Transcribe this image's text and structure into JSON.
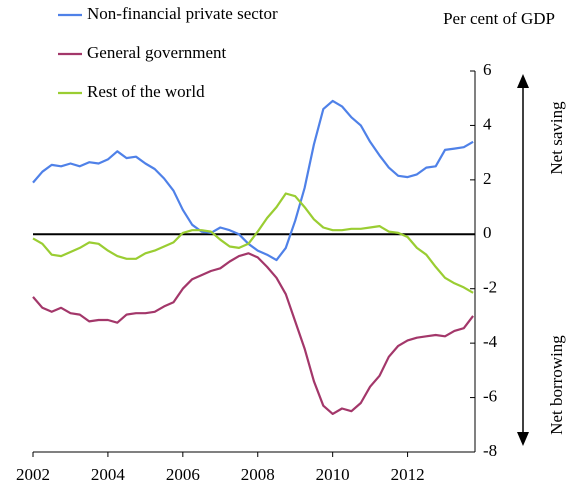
{
  "chart_data": {
    "type": "line",
    "title_note": null,
    "unit_label": "Per cent of GDP",
    "annotations": [
      "Net saving",
      "Net borrowing"
    ],
    "x": [
      2002,
      2002.25,
      2002.5,
      2002.75,
      2003,
      2003.25,
      2003.5,
      2003.75,
      2004,
      2004.25,
      2004.5,
      2004.75,
      2005,
      2005.25,
      2005.5,
      2005.75,
      2006,
      2006.25,
      2006.5,
      2006.75,
      2007,
      2007.25,
      2007.5,
      2007.75,
      2008,
      2008.25,
      2008.5,
      2008.75,
      2009,
      2009.25,
      2009.5,
      2009.75,
      2010,
      2010.25,
      2010.5,
      2010.75,
      2011,
      2011.25,
      2011.5,
      2011.75,
      2012,
      2012.25,
      2012.5,
      2012.75,
      2013,
      2013.25,
      2013.5,
      2013.75
    ],
    "series": [
      {
        "name": "Non-financial private sector",
        "color": "#4f81e8",
        "values": [
          1.9,
          2.3,
          2.55,
          2.5,
          2.6,
          2.5,
          2.65,
          2.6,
          2.75,
          3.05,
          2.8,
          2.85,
          2.6,
          2.4,
          2.05,
          1.6,
          0.9,
          0.35,
          0.1,
          0.05,
          0.25,
          0.15,
          0.0,
          -0.35,
          -0.6,
          -0.75,
          -0.95,
          -0.5,
          0.5,
          1.7,
          3.3,
          4.6,
          4.9,
          4.7,
          4.3,
          4.0,
          3.4,
          2.9,
          2.45,
          2.15,
          2.1,
          2.2,
          2.45,
          2.5,
          3.1,
          3.15,
          3.2,
          3.4
        ]
      },
      {
        "name": "General government",
        "color": "#a3376a",
        "values": [
          -2.3,
          -2.7,
          -2.85,
          -2.7,
          -2.9,
          -2.95,
          -3.2,
          -3.15,
          -3.15,
          -3.25,
          -2.95,
          -2.9,
          -2.9,
          -2.85,
          -2.65,
          -2.5,
          -2.0,
          -1.65,
          -1.5,
          -1.35,
          -1.25,
          -1.0,
          -0.8,
          -0.7,
          -0.85,
          -1.2,
          -1.6,
          -2.2,
          -3.2,
          -4.2,
          -5.4,
          -6.3,
          -6.6,
          -6.4,
          -6.5,
          -6.2,
          -5.6,
          -5.2,
          -4.5,
          -4.1,
          -3.9,
          -3.8,
          -3.75,
          -3.7,
          -3.75,
          -3.55,
          -3.45,
          -3.0
        ]
      },
      {
        "name": "Rest of the world",
        "color": "#9acd32",
        "values": [
          -0.15,
          -0.35,
          -0.75,
          -0.8,
          -0.65,
          -0.5,
          -0.3,
          -0.35,
          -0.6,
          -0.8,
          -0.9,
          -0.9,
          -0.7,
          -0.6,
          -0.45,
          -0.3,
          0.05,
          0.15,
          0.15,
          0.1,
          -0.2,
          -0.45,
          -0.5,
          -0.35,
          0.1,
          0.6,
          1.0,
          1.5,
          1.4,
          1.0,
          0.55,
          0.25,
          0.15,
          0.15,
          0.2,
          0.2,
          0.25,
          0.3,
          0.1,
          0.05,
          -0.1,
          -0.5,
          -0.75,
          -1.2,
          -1.6,
          -1.8,
          -1.95,
          -2.15
        ]
      }
    ],
    "xlim": [
      2002,
      2013.8
    ],
    "xticks": [
      2002,
      2004,
      2006,
      2008,
      2010,
      2012
    ],
    "ylim": [
      -8,
      6
    ],
    "yticks": [
      -8,
      -6,
      -4,
      -2,
      0,
      2,
      4,
      6
    ],
    "y_axis_side": "right",
    "grid": false
  }
}
